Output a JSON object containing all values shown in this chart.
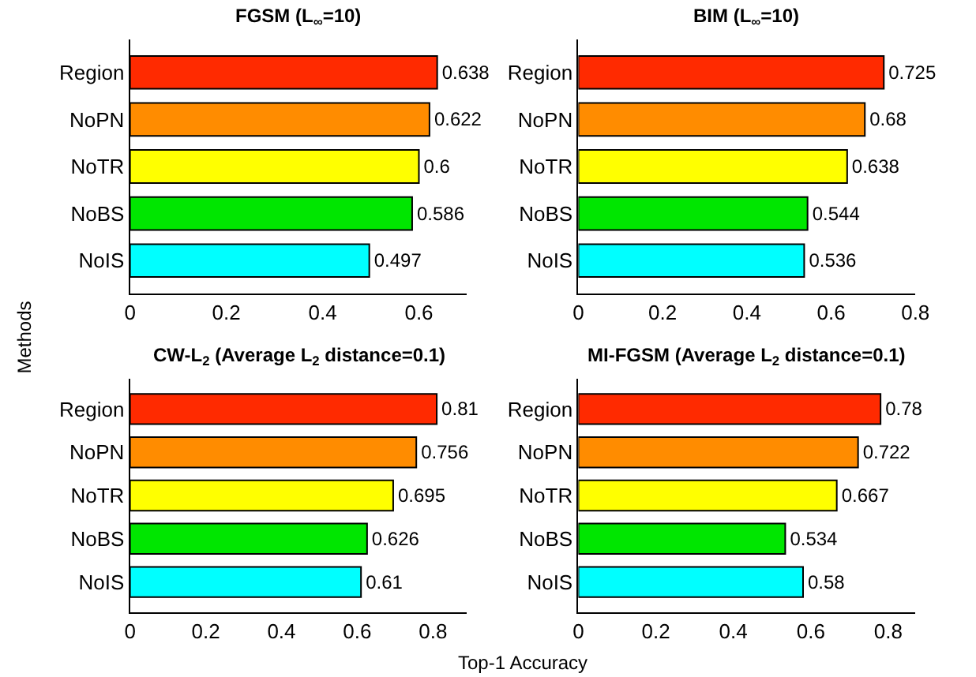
{
  "chart_data": [
    {
      "type": "bar",
      "orientation": "horizontal",
      "title": "FGSM (L$_{∞}$=10)",
      "ylabel": "Methods",
      "categories": [
        "Region",
        "NoPN",
        "NoTR",
        "NoBS",
        "NoIS"
      ],
      "values": [
        0.638,
        0.622,
        0.6,
        0.586,
        0.497
      ],
      "colors": [
        "#ff2a00",
        "#ff8c00",
        "#ffff00",
        "#00e600",
        "#00ffff"
      ],
      "xlim": [
        0,
        0.7
      ],
      "xticks": [
        0,
        0.2,
        0.4,
        0.6
      ],
      "data_labels": true
    },
    {
      "type": "bar",
      "orientation": "horizontal",
      "title": "BIM (L$_{∞}$=10)",
      "categories": [
        "Region",
        "NoPN",
        "NoTR",
        "NoBS",
        "NoIS"
      ],
      "values": [
        0.725,
        0.68,
        0.638,
        0.544,
        0.536
      ],
      "colors": [
        "#ff2a00",
        "#ff8c00",
        "#ffff00",
        "#00e600",
        "#00ffff"
      ],
      "xlim": [
        0,
        0.8
      ],
      "xticks": [
        0,
        0.2,
        0.4,
        0.6,
        0.8
      ],
      "data_labels": true
    },
    {
      "type": "bar",
      "orientation": "horizontal",
      "title": "CW-L$_{2}$ (Average L$_{2}$ distance=0.1)",
      "xlabel": "Top-1 Accuracy",
      "categories": [
        "Region",
        "NoPN",
        "NoTR",
        "NoBS",
        "NoIS"
      ],
      "values": [
        0.81,
        0.756,
        0.695,
        0.626,
        0.61
      ],
      "colors": [
        "#ff2a00",
        "#ff8c00",
        "#ffff00",
        "#00e600",
        "#00ffff"
      ],
      "xlim": [
        0,
        0.89
      ],
      "xticks": [
        0,
        0.2,
        0.4,
        0.6,
        0.8
      ],
      "data_labels": true
    },
    {
      "type": "bar",
      "orientation": "horizontal",
      "title": "MI-FGSM (Average L$_{2}$ distance=0.1)",
      "categories": [
        "Region",
        "NoPN",
        "NoTR",
        "NoBS",
        "NoIS"
      ],
      "values": [
        0.78,
        0.722,
        0.667,
        0.534,
        0.58
      ],
      "colors": [
        "#ff2a00",
        "#ff8c00",
        "#ffff00",
        "#00e600",
        "#00ffff"
      ],
      "xlim": [
        0,
        0.87
      ],
      "xticks": [
        0,
        0.2,
        0.4,
        0.6,
        0.8
      ],
      "data_labels": true
    }
  ]
}
